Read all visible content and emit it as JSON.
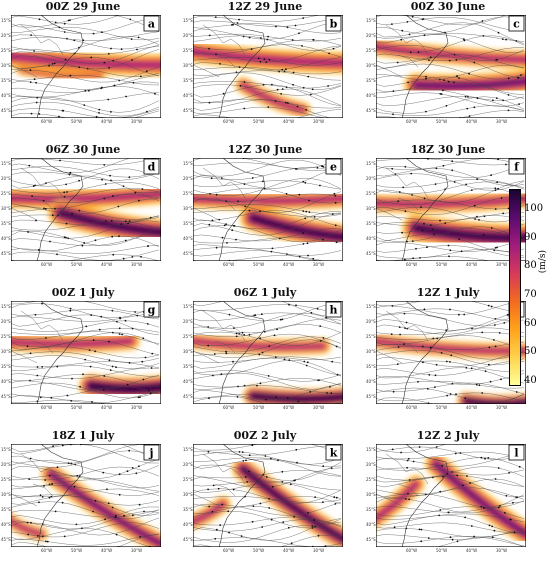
{
  "panels": [
    {
      "title": "00Z 29 June",
      "letter": "a"
    },
    {
      "title": "12Z 29 June",
      "letter": "b"
    },
    {
      "title": "00Z 30 June",
      "letter": "c"
    },
    {
      "title": "06Z 30 June",
      "letter": "d"
    },
    {
      "title": "12Z 30 June",
      "letter": "e"
    },
    {
      "title": "18Z 30 June",
      "letter": "f"
    },
    {
      "title": "00Z 1 July",
      "letter": "g"
    },
    {
      "title": "06Z 1 July",
      "letter": "h"
    },
    {
      "title": "12Z 1 July",
      "letter": "i"
    },
    {
      "title": "18Z 1 July",
      "letter": "j"
    },
    {
      "title": "00Z 2 July",
      "letter": "k"
    },
    {
      "title": "12Z 2 July",
      "letter": "l"
    }
  ],
  "lat_ticks": [
    "15°S",
    "20°S",
    "25°S",
    "30°S",
    "35°S",
    "40°S",
    "45°S"
  ],
  "lon_ticks": [
    "60°W",
    "50°W",
    "40°W",
    "30°W"
  ],
  "colorbar": {
    "unit": "(m/s)",
    "ticks": [
      40,
      50,
      60,
      70,
      80,
      90,
      100
    ],
    "colors": [
      "#ffff99",
      "#ffd24d",
      "#ffa31a",
      "#f26b1f",
      "#d63a5a",
      "#a11c7e",
      "#5c0b6e",
      "#1a0433"
    ]
  }
}
